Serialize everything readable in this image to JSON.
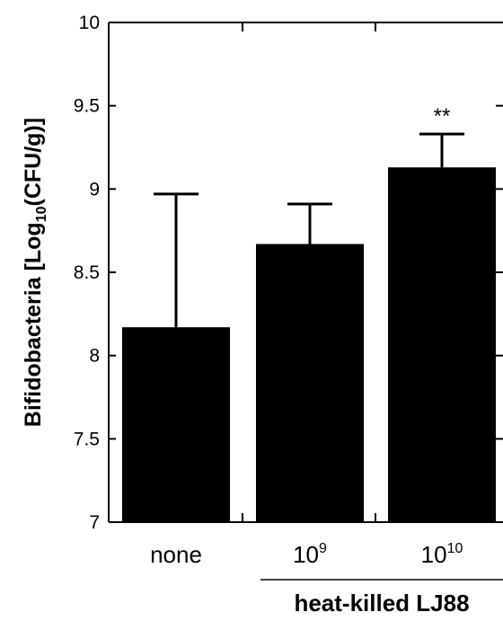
{
  "chart_data": {
    "type": "bar",
    "categories": [
      "none",
      "10^9",
      "10^10"
    ],
    "category_labels": [
      {
        "base": "none",
        "sup": ""
      },
      {
        "base": "10",
        "sup": "9"
      },
      {
        "base": "10",
        "sup": "10"
      }
    ],
    "values": [
      8.17,
      8.67,
      9.13
    ],
    "errors": [
      0.8,
      0.24,
      0.2
    ],
    "annotations": [
      "",
      "",
      "**"
    ],
    "ylim": [
      7,
      10
    ],
    "yticks": [
      7,
      7.5,
      8,
      8.5,
      9,
      9.5,
      10
    ],
    "ytick_labels": [
      "7",
      "7.5",
      "8",
      "8.5",
      "9",
      "9.5",
      "10"
    ],
    "ylabel": {
      "pre": "Bifidobacteria [Log",
      "sub": "10",
      "post": "(CFU/g)]"
    },
    "group_label": "heat-killed LJ88",
    "bar_color": "#000000",
    "grid": false
  }
}
